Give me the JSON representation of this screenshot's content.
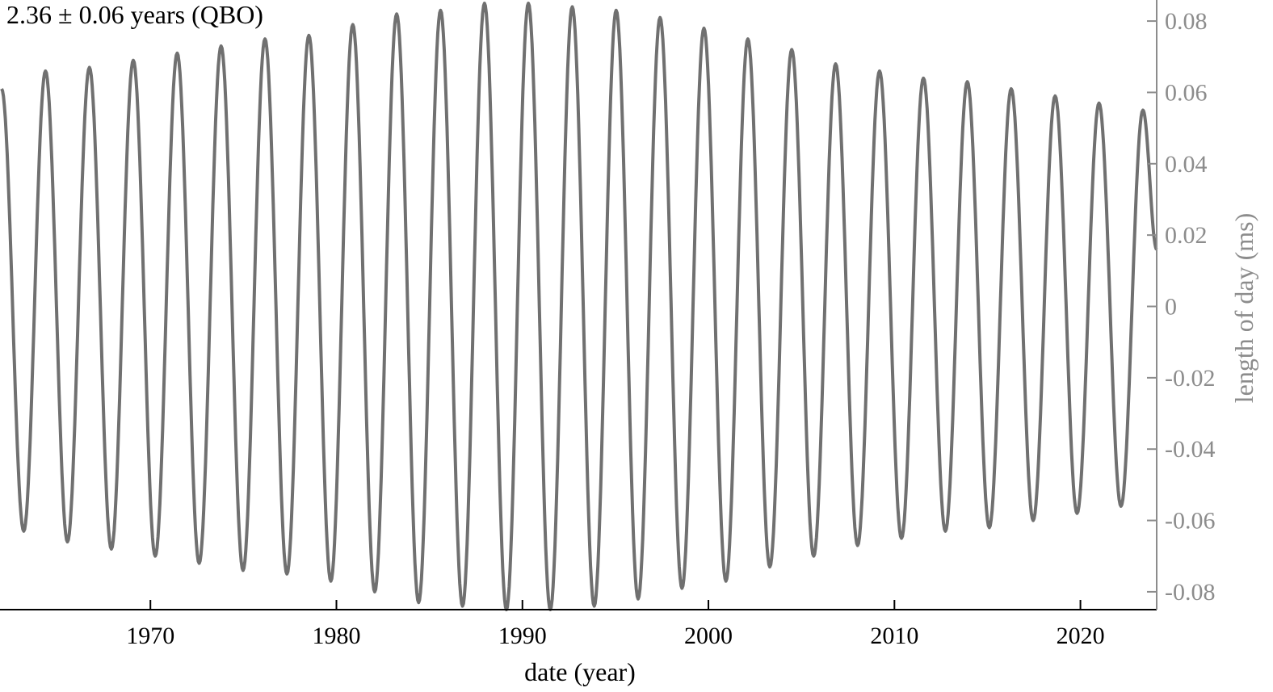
{
  "chart_data": {
    "type": "line",
    "annotation": "2.36 ± 0.06 years (QBO)",
    "xlabel": "date (year)",
    "ylabel": "length of day (ms)",
    "xlim": [
      1962,
      2024.1
    ],
    "ylim": [
      -0.085,
      0.085
    ],
    "x_ticks": [
      1970,
      1980,
      1990,
      2000,
      2010,
      2020
    ],
    "x_tick_labels": [
      "1970",
      "1980",
      "1990",
      "2000",
      "2010",
      "2020"
    ],
    "y_ticks": [
      0.08,
      0.06,
      0.04,
      0.02,
      0,
      -0.02,
      -0.04,
      -0.06,
      -0.08
    ],
    "y_tick_labels": [
      "0.08",
      "0.06",
      "0.04",
      "0.02",
      "0",
      "-0.02",
      "-0.04",
      "-0.06",
      "-0.08"
    ],
    "y_axis_side": "right",
    "grid": false,
    "colors": {
      "line": "#707070",
      "right_axis": "#8c8c8c",
      "bottom_axis": "#000000"
    },
    "series": [
      {
        "x": [
          1962.0,
          1963.19,
          1964.36,
          1965.54,
          1966.72,
          1967.9,
          1969.08,
          1970.26,
          1971.44,
          1972.62,
          1973.8,
          1974.98,
          1976.16,
          1977.34,
          1978.52,
          1979.7,
          1980.88,
          1982.06,
          1983.24,
          1984.42,
          1985.6,
          1986.78,
          1987.96,
          1989.14,
          1990.32,
          1991.5,
          1992.68,
          1993.86,
          1995.04,
          1996.22,
          1997.4,
          1998.58,
          1999.76,
          2000.94,
          2002.12,
          2003.3,
          2004.48,
          2005.66,
          2006.84,
          2008.02,
          2009.2,
          2010.38,
          2011.56,
          2012.74,
          2013.92,
          2015.1,
          2016.28,
          2017.46,
          2018.64,
          2019.82,
          2021.0,
          2022.18,
          2023.36,
          2024.1
        ],
        "y": [
          0.061,
          -0.063,
          0.066,
          -0.066,
          0.067,
          -0.068,
          0.069,
          -0.07,
          0.071,
          -0.072,
          0.073,
          -0.074,
          0.075,
          -0.075,
          0.076,
          -0.077,
          0.079,
          -0.08,
          0.082,
          -0.083,
          0.083,
          -0.084,
          0.085,
          -0.085,
          0.085,
          -0.085,
          0.084,
          -0.084,
          0.083,
          -0.082,
          0.081,
          -0.079,
          0.078,
          -0.077,
          0.075,
          -0.073,
          0.072,
          -0.07,
          0.068,
          -0.067,
          0.066,
          -0.065,
          0.064,
          -0.063,
          0.063,
          -0.062,
          0.061,
          -0.06,
          0.059,
          -0.058,
          0.057,
          -0.056,
          0.055,
          0.016
        ]
      }
    ]
  }
}
